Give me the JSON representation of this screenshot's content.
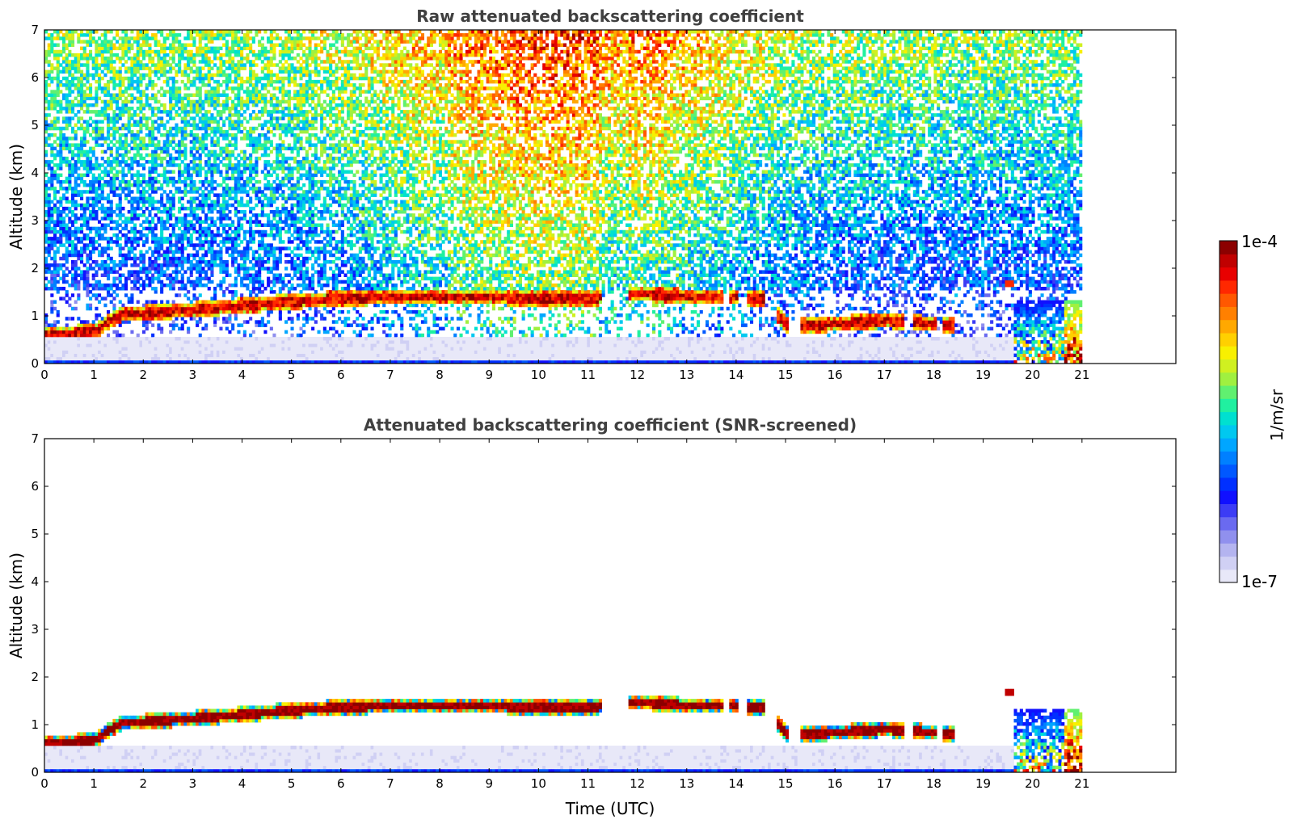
{
  "figure": {
    "colorbar": {
      "top_label": "1e-4",
      "bottom_label": "1e-7",
      "unit_label": "1/m/sr",
      "colors": [
        "#e8e8f8",
        "#d0d0f4",
        "#b4b4f0",
        "#9090ee",
        "#6a6af0",
        "#3c3cf5",
        "#1010ff",
        "#0030ff",
        "#0058ff",
        "#0080ff",
        "#00a6ff",
        "#00c8f0",
        "#00e0d0",
        "#20f0a0",
        "#60f070",
        "#a0f040",
        "#d0f020",
        "#f8f000",
        "#ffd000",
        "#ffa800",
        "#ff8000",
        "#ff5800",
        "#ff2800",
        "#e80000",
        "#c00000",
        "#8c0000"
      ]
    }
  },
  "chart_data": [
    {
      "type": "heatmap",
      "title": "Raw attenuated backscattering coefficient",
      "xlabel": "",
      "ylabel": "Altitude (km)",
      "xlim": [
        0,
        22.9
      ],
      "ylim": [
        0,
        7
      ],
      "xticks": [
        "0",
        "1",
        "2",
        "3",
        "4",
        "5",
        "6",
        "7",
        "8",
        "9",
        "10",
        "11",
        "12",
        "13",
        "14",
        "15",
        "16",
        "17",
        "18",
        "19",
        "20",
        "21"
      ],
      "yticks": [
        "0",
        "1",
        "2",
        "3",
        "4",
        "5",
        "6",
        "7"
      ],
      "data_end_time": 21,
      "colorscale": "1e-7 to 1e-4 1/m/sr (log)",
      "boundary_layer_top_km": [
        [
          0,
          0.55
        ],
        [
          1,
          0.65
        ],
        [
          1.5,
          1.0
        ],
        [
          2,
          1.03
        ],
        [
          3,
          1.1
        ],
        [
          4,
          1.18
        ],
        [
          5,
          1.27
        ],
        [
          6,
          1.33
        ],
        [
          7,
          1.37
        ],
        [
          8,
          1.37
        ],
        [
          9,
          1.36
        ],
        [
          10,
          1.33
        ],
        [
          11,
          1.32
        ],
        [
          11.9,
          1.45
        ],
        [
          12.5,
          1.4
        ],
        [
          13,
          1.37
        ],
        [
          13.6,
          1.36
        ],
        [
          14,
          1.35
        ],
        [
          14.5,
          1.34
        ],
        [
          15,
          0.75
        ],
        [
          16,
          0.8
        ],
        [
          17,
          0.87
        ],
        [
          18,
          0.8
        ],
        [
          18.4,
          0.75
        ]
      ]
    },
    {
      "type": "heatmap",
      "title": "Attenuated backscattering coefficient (SNR-screened)",
      "xlabel": "Time (UTC)",
      "ylabel": "Altitude (km)",
      "xlim": [
        0,
        22.9
      ],
      "ylim": [
        0,
        7
      ],
      "xticks": [
        "0",
        "1",
        "2",
        "3",
        "4",
        "5",
        "6",
        "7",
        "8",
        "9",
        "10",
        "11",
        "12",
        "13",
        "14",
        "15",
        "16",
        "17",
        "18",
        "19",
        "20",
        "21"
      ],
      "yticks": [
        "0",
        "1",
        "2",
        "3",
        "4",
        "5",
        "6",
        "7"
      ],
      "data_end_time": 21,
      "colorscale": "1e-7 to 1e-4 1/m/sr (log)",
      "boundary_layer_top_km": [
        [
          0,
          0.55
        ],
        [
          1,
          0.65
        ],
        [
          1.5,
          1.0
        ],
        [
          2,
          1.03
        ],
        [
          3,
          1.1
        ],
        [
          4,
          1.18
        ],
        [
          5,
          1.27
        ],
        [
          6,
          1.33
        ],
        [
          7,
          1.37
        ],
        [
          8,
          1.37
        ],
        [
          9,
          1.36
        ],
        [
          10,
          1.33
        ],
        [
          11,
          1.32
        ],
        [
          11.9,
          1.45
        ],
        [
          12.5,
          1.4
        ],
        [
          13,
          1.37
        ],
        [
          13.6,
          1.36
        ],
        [
          14,
          1.35
        ],
        [
          14.5,
          1.34
        ],
        [
          15,
          0.75
        ],
        [
          16,
          0.8
        ],
        [
          17,
          0.87
        ],
        [
          18,
          0.8
        ],
        [
          18.4,
          0.75
        ]
      ]
    }
  ]
}
